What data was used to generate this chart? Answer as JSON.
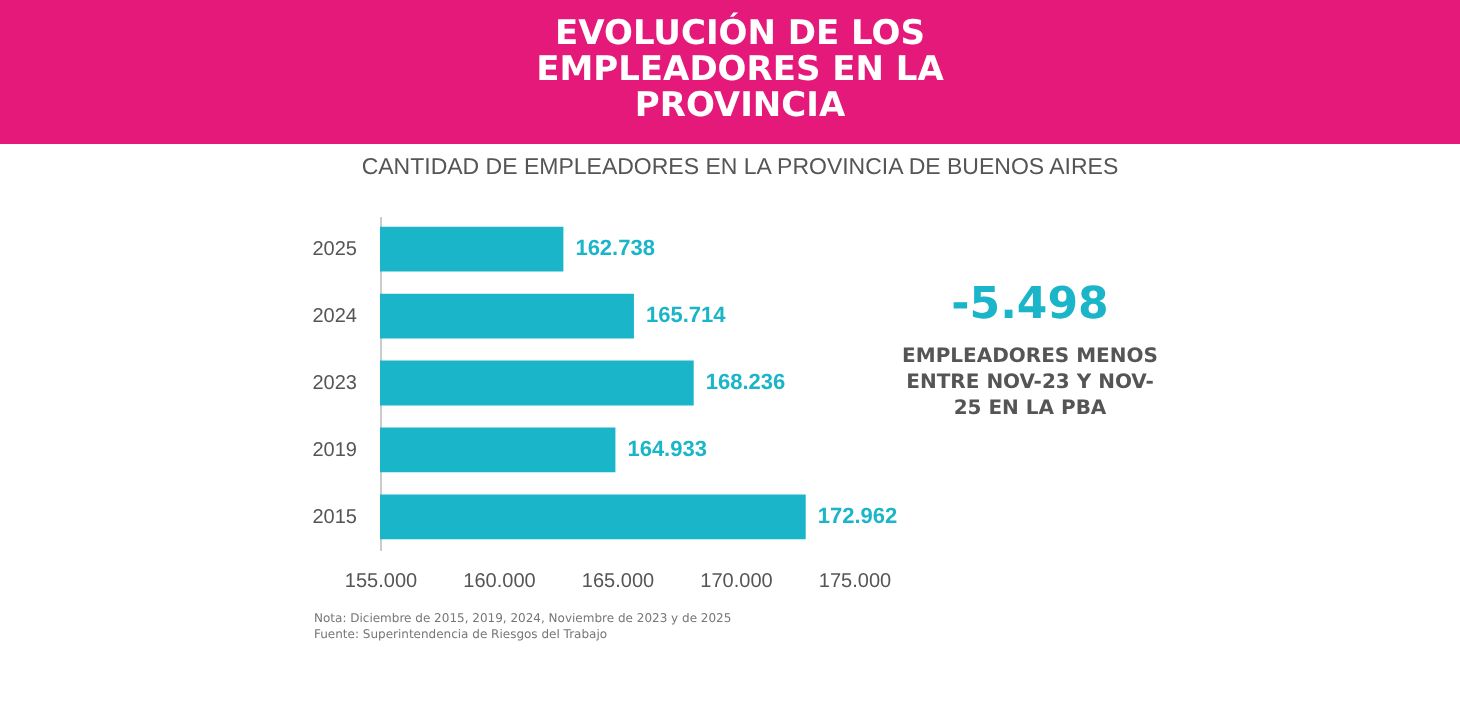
{
  "chart_data": {
    "type": "bar",
    "orientation": "horizontal",
    "title": "EVOLUCIÓN DE LOS EMPLEADORES EN LA PROVINCIA",
    "subtitle": "CANTIDAD DE EMPLEADORES EN LA PROVINCIA DE BUENOS AIRES",
    "categories": [
      "2025",
      "2024",
      "2023",
      "2019",
      "2015"
    ],
    "values": [
      162738,
      165714,
      168236,
      164933,
      172962
    ],
    "value_labels": [
      "162.738",
      "165.714",
      "168.236",
      "164.933",
      "172.962"
    ],
    "color": "#1ab5c9",
    "xlim": [
      155000,
      175000
    ],
    "xticks": [
      {
        "value": 155000,
        "label": "155.000"
      },
      {
        "value": 160000,
        "label": "160.000"
      },
      {
        "value": 165000,
        "label": "165.000"
      },
      {
        "value": 170000,
        "label": "170.000"
      },
      {
        "value": 175000,
        "label": "175.000"
      }
    ],
    "grid": false,
    "annotations": [
      "-5.498",
      "EMPLEADORES MENOS ENTRE NOV-23 Y NOV-25 EN LA PBA",
      "Nota: Diciembre de 2015, 2019, 2024, Noviembre de 2023  y de 2025",
      "Fuente: Superintendencia de Riesgos del Trabajo"
    ]
  }
}
